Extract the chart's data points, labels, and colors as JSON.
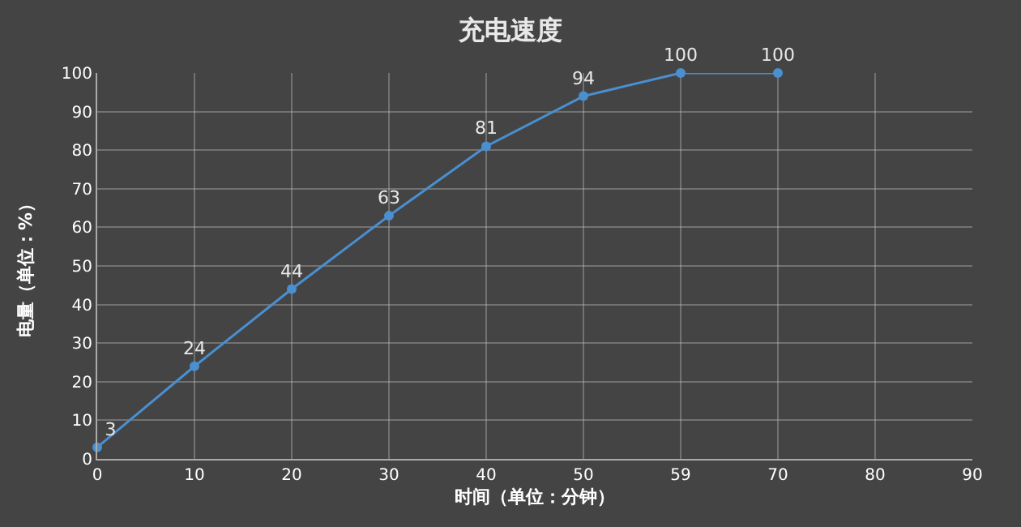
{
  "chart_data": {
    "type": "line",
    "title": "充电速度",
    "xlabel": "时间（单位：分钟）",
    "ylabel": "电量（单位：%）",
    "categories": [
      "0",
      "10",
      "20",
      "30",
      "40",
      "50",
      "59",
      "70",
      "80",
      "90"
    ],
    "series": [
      {
        "color": "#4a8fd0",
        "values": [
          3,
          24,
          44,
          63,
          81,
          94,
          100,
          100,
          null,
          null
        ]
      }
    ],
    "ylim": [
      0,
      100
    ],
    "yticks": [
      0,
      10,
      20,
      30,
      40,
      50,
      60,
      70,
      80,
      90,
      100
    ],
    "grid": true,
    "marker": "circle",
    "line_style": "solid",
    "data_labels": true,
    "legend": false
  }
}
